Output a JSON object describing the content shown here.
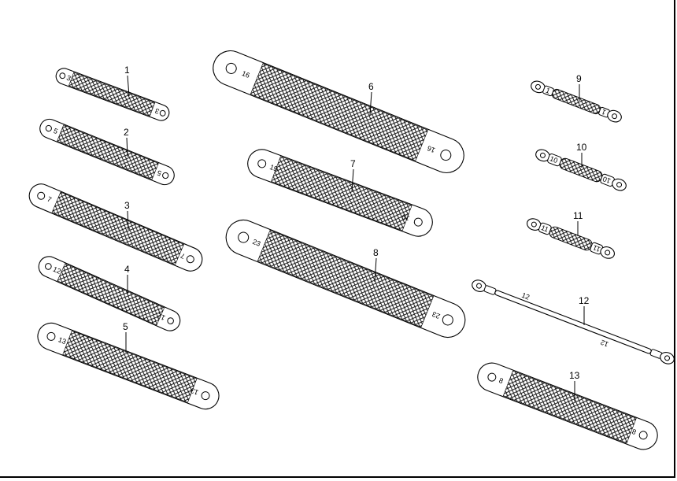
{
  "diagram": {
    "parts": [
      {
        "callout": "1",
        "end_a": "3",
        "end_b": "3"
      },
      {
        "callout": "2",
        "end_a": "5",
        "end_b": "5"
      },
      {
        "callout": "3",
        "end_a": "7",
        "end_b": "7"
      },
      {
        "callout": "4",
        "end_a": "12",
        "end_b": "12"
      },
      {
        "callout": "5",
        "end_a": "13",
        "end_b": "13"
      },
      {
        "callout": "6",
        "end_a": "16",
        "end_b": "16"
      },
      {
        "callout": "7",
        "end_a": "19",
        "end_b": "19"
      },
      {
        "callout": "8",
        "end_a": "23",
        "end_b": "23"
      },
      {
        "callout": "9",
        "end_a": "1",
        "end_b": "1"
      },
      {
        "callout": "10",
        "end_a": "10",
        "end_b": "10"
      },
      {
        "callout": "11",
        "end_a": "11",
        "end_b": "11"
      },
      {
        "callout": "12",
        "end_a": "12",
        "end_b": "12"
      },
      {
        "callout": "13",
        "end_a": "8",
        "end_b": "8"
      }
    ]
  },
  "colors": {
    "ink": "#000000",
    "paper": "#ffffff"
  }
}
